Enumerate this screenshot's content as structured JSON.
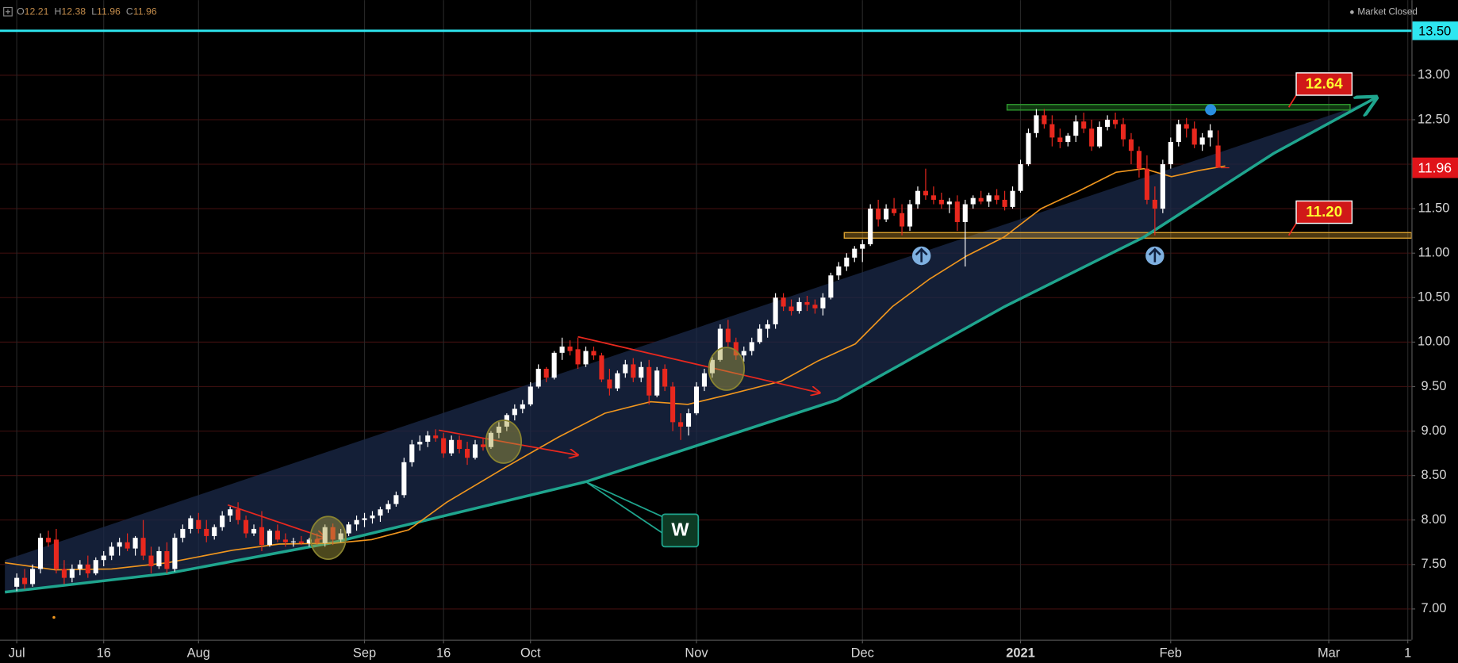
{
  "chart_data": {
    "type": "candlestick",
    "ohlc_labels": [
      "O",
      "H",
      "L",
      "C"
    ],
    "status": "Market Closed",
    "colors": {
      "up": "#ffffff",
      "down": "#e8281e"
    },
    "grid": true,
    "xlim": [
      -2.12,
      176.47
    ],
    "xticks": [
      {
        "value": 0,
        "label": "Jul"
      },
      {
        "value": 11,
        "label": "16"
      },
      {
        "value": 23,
        "label": "Aug"
      },
      {
        "value": 44,
        "label": "Sep"
      },
      {
        "value": 54,
        "label": "16"
      },
      {
        "value": 65,
        "label": "Oct"
      },
      {
        "value": 86,
        "label": "Nov"
      },
      {
        "value": 107,
        "label": "Dec"
      },
      {
        "value": 127,
        "label": "2021"
      },
      {
        "value": 146,
        "label": "Feb"
      },
      {
        "value": 166,
        "label": "Mar"
      },
      {
        "value": 176,
        "label": "1"
      }
    ],
    "ylim": [
      6.655,
      13.845
    ],
    "yticks": [
      {
        "value": 7,
        "label": "7.00"
      },
      {
        "value": 7.5,
        "label": "7.50"
      },
      {
        "value": 8,
        "label": "8.00"
      },
      {
        "value": 8.5,
        "label": "8.50"
      },
      {
        "value": 9,
        "label": "9.00"
      },
      {
        "value": 9.5,
        "label": "9.50"
      },
      {
        "value": 10,
        "label": "10.00"
      },
      {
        "value": 10.5,
        "label": "10.50"
      },
      {
        "value": 11,
        "label": "11.00"
      },
      {
        "value": 11.5,
        "label": "11.50"
      },
      {
        "value": 12,
        "label": "12.00"
      },
      {
        "value": 12.5,
        "label": "12.50"
      },
      {
        "value": 13,
        "label": "13.00"
      }
    ],
    "candles": [
      [
        7.25,
        7.4,
        7.2,
        7.35
      ],
      [
        7.35,
        7.45,
        7.22,
        7.28
      ],
      [
        7.28,
        7.5,
        7.25,
        7.45
      ],
      [
        7.45,
        7.85,
        7.4,
        7.8
      ],
      [
        7.8,
        7.88,
        7.7,
        7.75
      ],
      [
        7.78,
        7.9,
        7.4,
        7.45
      ],
      [
        7.45,
        7.55,
        7.28,
        7.35
      ],
      [
        7.35,
        7.5,
        7.3,
        7.45
      ],
      [
        7.45,
        7.55,
        7.38,
        7.5
      ],
      [
        7.5,
        7.6,
        7.35,
        7.4
      ],
      [
        7.4,
        7.58,
        7.38,
        7.55
      ],
      [
        7.55,
        7.65,
        7.48,
        7.6
      ],
      [
        7.6,
        7.75,
        7.55,
        7.7
      ],
      [
        7.7,
        7.8,
        7.6,
        7.75
      ],
      [
        7.75,
        7.85,
        7.65,
        7.68
      ],
      [
        7.68,
        7.82,
        7.6,
        7.8
      ],
      [
        7.8,
        8.0,
        7.55,
        7.6
      ],
      [
        7.6,
        7.7,
        7.4,
        7.48
      ],
      [
        7.48,
        7.7,
        7.45,
        7.65
      ],
      [
        7.65,
        7.75,
        7.4,
        7.45
      ],
      [
        7.45,
        7.85,
        7.42,
        7.8
      ],
      [
        7.8,
        7.95,
        7.75,
        7.9
      ],
      [
        7.9,
        8.05,
        7.85,
        8.02
      ],
      [
        8.0,
        8.08,
        7.85,
        7.9
      ],
      [
        7.9,
        8.0,
        7.75,
        7.82
      ],
      [
        7.82,
        7.95,
        7.78,
        7.92
      ],
      [
        7.92,
        8.1,
        7.88,
        8.05
      ],
      [
        8.05,
        8.15,
        7.98,
        8.12
      ],
      [
        8.12,
        8.2,
        7.95,
        8.0
      ],
      [
        8.0,
        8.05,
        7.8,
        7.85
      ],
      [
        7.85,
        7.95,
        7.82,
        7.9
      ],
      [
        7.92,
        8.1,
        7.65,
        7.72
      ],
      [
        7.72,
        7.9,
        7.7,
        7.88
      ],
      [
        7.88,
        7.95,
        7.75,
        7.78
      ],
      [
        7.78,
        7.85,
        7.7,
        7.75
      ],
      [
        7.75,
        7.8,
        7.7,
        7.76
      ],
      [
        7.76,
        7.82,
        7.72,
        7.74
      ],
      [
        7.74,
        7.8,
        7.7,
        7.78
      ],
      [
        7.78,
        7.85,
        7.72,
        7.74
      ],
      [
        7.74,
        7.95,
        7.7,
        7.92
      ],
      [
        7.92,
        7.96,
        7.72,
        7.78
      ],
      [
        7.78,
        7.9,
        7.75,
        7.85
      ],
      [
        7.85,
        7.98,
        7.82,
        7.95
      ],
      [
        7.95,
        8.05,
        7.88,
        8.0
      ],
      [
        8.0,
        8.08,
        7.92,
        8.02
      ],
      [
        8.02,
        8.1,
        7.96,
        8.05
      ],
      [
        8.05,
        8.15,
        7.98,
        8.12
      ],
      [
        8.12,
        8.22,
        8.08,
        8.18
      ],
      [
        8.18,
        8.32,
        8.15,
        8.28
      ],
      [
        8.28,
        8.7,
        8.25,
        8.65
      ],
      [
        8.65,
        8.9,
        8.6,
        8.85
      ],
      [
        8.85,
        8.95,
        8.78,
        8.88
      ],
      [
        8.88,
        9.0,
        8.82,
        8.95
      ],
      [
        8.95,
        9.02,
        8.88,
        8.92
      ],
      [
        8.92,
        8.98,
        8.7,
        8.75
      ],
      [
        8.75,
        8.95,
        8.72,
        8.9
      ],
      [
        8.9,
        8.95,
        8.75,
        8.8
      ],
      [
        8.8,
        8.88,
        8.62,
        8.7
      ],
      [
        8.7,
        8.9,
        8.68,
        8.85
      ],
      [
        8.85,
        8.92,
        8.78,
        8.82
      ],
      [
        8.82,
        9.0,
        8.8,
        8.98
      ],
      [
        8.98,
        9.1,
        8.92,
        9.05
      ],
      [
        9.05,
        9.2,
        9.0,
        9.18
      ],
      [
        9.18,
        9.3,
        9.12,
        9.25
      ],
      [
        9.25,
        9.35,
        9.2,
        9.3
      ],
      [
        9.3,
        9.55,
        9.28,
        9.5
      ],
      [
        9.5,
        9.75,
        9.48,
        9.7
      ],
      [
        9.7,
        9.72,
        9.55,
        9.6
      ],
      [
        9.6,
        9.9,
        9.58,
        9.88
      ],
      [
        9.88,
        10.05,
        9.8,
        9.95
      ],
      [
        9.95,
        10.02,
        9.85,
        9.9
      ],
      [
        9.92,
        10.05,
        9.7,
        9.75
      ],
      [
        9.75,
        9.95,
        9.72,
        9.9
      ],
      [
        9.9,
        9.95,
        9.8,
        9.85
      ],
      [
        9.85,
        9.88,
        9.55,
        9.58
      ],
      [
        9.58,
        9.7,
        9.4,
        9.48
      ],
      [
        9.48,
        9.68,
        9.45,
        9.65
      ],
      [
        9.65,
        9.8,
        9.6,
        9.75
      ],
      [
        9.75,
        9.82,
        9.55,
        9.6
      ],
      [
        9.6,
        9.78,
        9.55,
        9.72
      ],
      [
        9.72,
        9.8,
        9.3,
        9.4
      ],
      [
        9.4,
        9.72,
        9.38,
        9.68
      ],
      [
        9.7,
        9.75,
        9.45,
        9.5
      ],
      [
        9.5,
        9.55,
        9.0,
        9.1
      ],
      [
        9.1,
        9.2,
        8.9,
        9.05
      ],
      [
        9.05,
        9.25,
        8.95,
        9.2
      ],
      [
        9.2,
        9.55,
        9.18,
        9.5
      ],
      [
        9.5,
        9.7,
        9.45,
        9.65
      ],
      [
        9.65,
        9.85,
        9.6,
        9.8
      ],
      [
        9.8,
        10.2,
        9.78,
        10.15
      ],
      [
        10.15,
        10.25,
        9.95,
        10.0
      ],
      [
        10.0,
        10.05,
        9.8,
        9.85
      ],
      [
        9.85,
        9.95,
        9.78,
        9.9
      ],
      [
        9.9,
        10.05,
        9.85,
        10.0
      ],
      [
        10.0,
        10.2,
        9.98,
        10.15
      ],
      [
        10.15,
        10.25,
        10.05,
        10.2
      ],
      [
        10.2,
        10.55,
        10.15,
        10.5
      ],
      [
        10.5,
        10.55,
        10.35,
        10.4
      ],
      [
        10.4,
        10.48,
        10.3,
        10.35
      ],
      [
        10.35,
        10.5,
        10.32,
        10.45
      ],
      [
        10.45,
        10.52,
        10.35,
        10.42
      ],
      [
        10.42,
        10.48,
        10.32,
        10.38
      ],
      [
        10.38,
        10.55,
        10.3,
        10.5
      ],
      [
        10.5,
        10.78,
        10.48,
        10.75
      ],
      [
        10.75,
        10.9,
        10.7,
        10.85
      ],
      [
        10.85,
        11.0,
        10.8,
        10.95
      ],
      [
        10.95,
        11.08,
        10.9,
        11.05
      ],
      [
        11.05,
        11.15,
        10.9,
        11.1
      ],
      [
        11.1,
        11.55,
        11.08,
        11.5
      ],
      [
        11.5,
        11.6,
        11.3,
        11.38
      ],
      [
        11.38,
        11.55,
        11.35,
        11.5
      ],
      [
        11.5,
        11.62,
        11.42,
        11.45
      ],
      [
        11.45,
        11.55,
        11.2,
        11.3
      ],
      [
        11.3,
        11.6,
        11.25,
        11.55
      ],
      [
        11.55,
        11.75,
        11.5,
        11.7
      ],
      [
        11.7,
        11.95,
        11.6,
        11.65
      ],
      [
        11.65,
        11.75,
        11.55,
        11.6
      ],
      [
        11.6,
        11.68,
        11.5,
        11.55
      ],
      [
        11.55,
        11.62,
        11.45,
        11.58
      ],
      [
        11.58,
        11.65,
        11.25,
        11.35
      ],
      [
        11.35,
        11.6,
        10.85,
        11.55
      ],
      [
        11.55,
        11.65,
        11.5,
        11.62
      ],
      [
        11.62,
        11.7,
        11.55,
        11.58
      ],
      [
        11.58,
        11.68,
        11.52,
        11.65
      ],
      [
        11.65,
        11.72,
        11.55,
        11.6
      ],
      [
        11.6,
        11.7,
        11.48,
        11.52
      ],
      [
        11.52,
        11.75,
        11.5,
        11.7
      ],
      [
        11.7,
        12.05,
        11.68,
        12.0
      ],
      [
        12.0,
        12.4,
        11.98,
        12.35
      ],
      [
        12.35,
        12.62,
        12.3,
        12.55
      ],
      [
        12.55,
        12.62,
        12.4,
        12.45
      ],
      [
        12.45,
        12.55,
        12.2,
        12.3
      ],
      [
        12.3,
        12.4,
        12.18,
        12.25
      ],
      [
        12.25,
        12.35,
        12.2,
        12.32
      ],
      [
        12.32,
        12.55,
        12.25,
        12.48
      ],
      [
        12.48,
        12.58,
        12.35,
        12.4
      ],
      [
        12.4,
        12.5,
        12.15,
        12.2
      ],
      [
        12.2,
        12.48,
        12.18,
        12.42
      ],
      [
        12.42,
        12.55,
        12.38,
        12.5
      ],
      [
        12.5,
        12.58,
        12.4,
        12.45
      ],
      [
        12.45,
        12.52,
        12.2,
        12.28
      ],
      [
        12.28,
        12.35,
        12.0,
        12.15
      ],
      [
        12.15,
        12.2,
        11.85,
        11.95
      ],
      [
        11.95,
        12.1,
        11.55,
        11.6
      ],
      [
        11.6,
        11.75,
        11.2,
        11.5
      ],
      [
        11.5,
        12.05,
        11.45,
        12.0
      ],
      [
        12.0,
        12.3,
        11.95,
        12.25
      ],
      [
        12.25,
        12.5,
        12.2,
        12.45
      ],
      [
        12.45,
        12.52,
        12.3,
        12.4
      ],
      [
        12.4,
        12.48,
        12.18,
        12.22
      ],
      [
        12.22,
        12.35,
        12.15,
        12.3
      ],
      [
        12.3,
        12.45,
        12.2,
        12.38
      ],
      [
        12.21,
        12.38,
        11.96,
        11.96
      ]
    ],
    "moving_average": {
      "color": "#f0961e",
      "x": [
        -1.5,
        4.9,
        12,
        19.1,
        27.3,
        33.2,
        40.2,
        44.9,
        49.6,
        54.4,
        61.4,
        68.5,
        74.4,
        80.2,
        84.9,
        89.6,
        96.7,
        101.4,
        106.1,
        110.8,
        115.5,
        120.2,
        124.9,
        129.6,
        134.4,
        139.1,
        142.6,
        146.1,
        149.6,
        152.9
      ],
      "values": [
        7.52,
        7.44,
        7.45,
        7.52,
        7.66,
        7.73,
        7.74,
        7.78,
        7.89,
        8.2,
        8.57,
        8.93,
        9.2,
        9.33,
        9.3,
        9.4,
        9.56,
        9.79,
        9.98,
        10.4,
        10.71,
        10.97,
        11.18,
        11.5,
        11.7,
        11.91,
        11.95,
        11.86,
        11.93,
        11.98
      ]
    },
    "trendline": {
      "color": "#1fa58e",
      "x": [
        -1.5,
        19.1,
        40.2,
        72,
        103.8,
        125,
        142.6,
        159,
        172
      ],
      "values": [
        7.19,
        7.4,
        7.75,
        8.43,
        9.35,
        10.4,
        11.18,
        12.12,
        12.75
      ]
    },
    "channel": {
      "color": "#1b2a4a",
      "x": [
        -1.5,
        168.5
      ],
      "values": [
        7.55,
        12.62
      ]
    },
    "levels": [
      {
        "value": 13.5,
        "label": "13.50",
        "color": "#2ee6f0"
      },
      {
        "value": 12.64,
        "label": "12.64",
        "color": "#2e9a2e",
        "x": [
          125.3,
          168.7
        ]
      },
      {
        "value": 11.2,
        "label": "11.20",
        "color": "#d9a030",
        "x": [
          104.7,
          176.47
        ]
      }
    ],
    "arrows": [
      {
        "color": "#e8281e",
        "x": [
          26.7,
          39
        ],
        "values": [
          8.17,
          7.8
        ]
      },
      {
        "color": "#e8281e",
        "x": [
          53.4,
          71
        ],
        "values": [
          9.01,
          8.73
        ]
      },
      {
        "color": "#e8281e",
        "x": [
          71,
          101.6
        ],
        "values": [
          10.06,
          9.43
        ]
      }
    ],
    "highlights": [
      {
        "x": 39.4,
        "value": 7.8
      },
      {
        "x": 61.6,
        "value": 8.88
      },
      {
        "x": 89.8,
        "value": 9.7
      }
    ],
    "annotation": "W"
  }
}
